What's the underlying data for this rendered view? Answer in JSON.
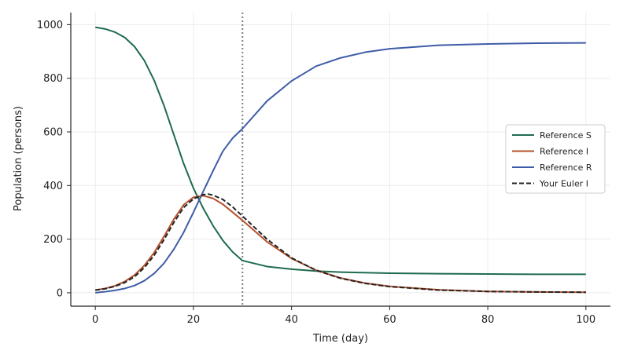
{
  "chart_data": {
    "type": "line",
    "xlabel": "Time (day)",
    "ylabel": "Population (persons)",
    "xlim": [
      -5,
      105
    ],
    "ylim": [
      -50,
      1045
    ],
    "xticks": [
      0,
      20,
      40,
      60,
      80,
      100
    ],
    "yticks": [
      0,
      200,
      400,
      600,
      800,
      1000
    ],
    "grid": true,
    "legend_position": "center-right",
    "vertical_marker": {
      "x": 30,
      "style": "dotted",
      "color": "#808080"
    },
    "series": [
      {
        "name": "Reference S",
        "color": "#1f6b4f",
        "dash": "solid",
        "x": [
          0,
          2,
          4,
          6,
          8,
          10,
          12,
          14,
          16,
          18,
          20,
          22,
          24,
          26,
          28,
          30,
          35,
          40,
          45,
          50,
          60,
          70,
          80,
          90,
          100
        ],
        "y": [
          990,
          984,
          972,
          952,
          918,
          866,
          792,
          698,
          590,
          482,
          390,
          315,
          250,
          195,
          152,
          120,
          98,
          88,
          81,
          77,
          73,
          71,
          70,
          69,
          69
        ]
      },
      {
        "name": "Reference I",
        "color": "#b5512e",
        "dash": "solid",
        "x": [
          0,
          2,
          4,
          6,
          8,
          10,
          12,
          14,
          16,
          18,
          20,
          22,
          24,
          26,
          28,
          30,
          35,
          40,
          45,
          50,
          55,
          60,
          70,
          80,
          90,
          100
        ],
        "y": [
          10,
          16,
          26,
          42,
          66,
          102,
          150,
          210,
          274,
          328,
          356,
          362,
          352,
          330,
          300,
          270,
          190,
          128,
          84,
          55,
          36,
          24,
          11,
          5,
          3,
          2
        ]
      },
      {
        "name": "Reference R",
        "color": "#3f5ca8",
        "dash": "solid",
        "x": [
          0,
          2,
          4,
          6,
          8,
          10,
          12,
          14,
          16,
          18,
          20,
          22,
          24,
          26,
          28,
          30,
          35,
          40,
          45,
          50,
          55,
          60,
          70,
          80,
          90,
          100
        ],
        "y": [
          0,
          4,
          9,
          16,
          27,
          45,
          72,
          110,
          162,
          225,
          300,
          378,
          455,
          528,
          577,
          612,
          715,
          790,
          845,
          876,
          897,
          910,
          923,
          928,
          931,
          932
        ]
      },
      {
        "name": "Your Euler I",
        "color": "#222222",
        "dash": "dashed",
        "x": [
          0,
          2,
          4,
          6,
          8,
          10,
          12,
          14,
          16,
          18,
          20,
          22,
          23,
          24,
          26,
          28,
          30,
          35,
          40,
          45,
          50,
          55,
          60,
          70,
          80,
          90,
          100
        ],
        "y": [
          10,
          15,
          24,
          38,
          60,
          94,
          140,
          198,
          262,
          318,
          350,
          366,
          368,
          364,
          348,
          320,
          286,
          200,
          130,
          84,
          54,
          35,
          23,
          10,
          5,
          3,
          2
        ]
      }
    ]
  }
}
